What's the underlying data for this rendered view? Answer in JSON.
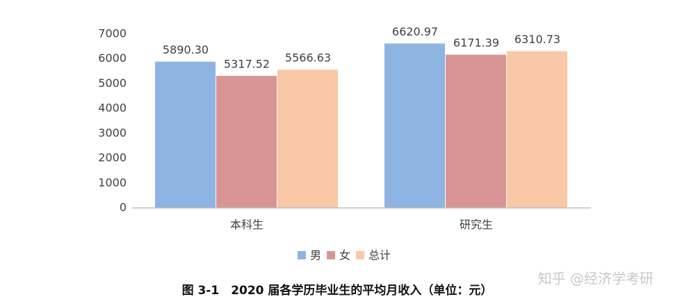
{
  "chart_data": {
    "type": "bar",
    "categories": [
      "本科生",
      "研究生"
    ],
    "series": [
      {
        "name": "男",
        "color": "#8eb4e3",
        "values": [
          5890.3,
          6620.97
        ],
        "value_labels": [
          "5890.30",
          "6620.97"
        ]
      },
      {
        "name": "女",
        "color": "#d99594",
        "values": [
          5317.52,
          6171.39
        ],
        "value_labels": [
          "5317.52",
          "6171.39"
        ]
      },
      {
        "name": "总计",
        "color": "#f9c8a7",
        "values": [
          5566.63,
          6310.73
        ],
        "value_labels": [
          "5566.63",
          "6310.73"
        ]
      }
    ],
    "ylim": [
      0,
      7000
    ],
    "yticks": [
      0,
      1000,
      2000,
      3000,
      4000,
      5000,
      6000,
      7000
    ],
    "grid": false,
    "legend": "bottom",
    "caption": "图 3-1　2020 届各学历毕业生的平均月收入（单位：元）",
    "watermark": "知乎 @经济学考研"
  }
}
